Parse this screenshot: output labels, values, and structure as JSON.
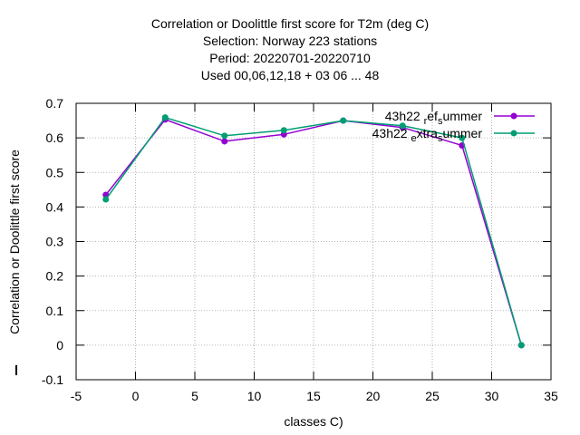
{
  "chart_data": {
    "type": "line",
    "title_lines": [
      "Correlation or Doolittle first score  for T2m (deg C)",
      "Selection: Norway     223 stations",
      "Period: 20220701-20220710",
      "Used  00,06,12,18  + 03 06 ... 48"
    ],
    "xlabel": "classes C)",
    "ylabel": "Correlation or Doolittle first score",
    "xlim": [
      -5,
      35
    ],
    "ylim": [
      -0.1,
      0.7
    ],
    "xticks": [
      "-5",
      "0",
      "5",
      "10",
      "15",
      "20",
      "25",
      "30",
      "35"
    ],
    "yticks": [
      "-0.1",
      "0",
      "0.1",
      "0.2",
      "0.3",
      "0.4",
      "0.5",
      "0.6",
      "0.7"
    ],
    "grid": true,
    "legend_position": "top-right",
    "series": [
      {
        "name": "43h22 ref summer",
        "legend_parts": [
          "43h22 ",
          "r",
          "ef",
          "s",
          "ummer"
        ],
        "color": "#9400d3",
        "x": [
          -2.5,
          2.5,
          7.5,
          12.5,
          17.5,
          22.5,
          27.5,
          32.5
        ],
        "values": [
          0.435,
          0.653,
          0.59,
          0.61,
          0.65,
          0.63,
          0.578,
          0.0
        ]
      },
      {
        "name": "43h22 extra summer",
        "legend_parts": [
          "43h22 ",
          "e",
          "xtra",
          "s",
          "ummer"
        ],
        "color": "#009e73",
        "x": [
          -2.5,
          2.5,
          7.5,
          12.5,
          17.5,
          22.5,
          27.5,
          32.5
        ],
        "values": [
          0.422,
          0.659,
          0.606,
          0.622,
          0.65,
          0.635,
          0.6,
          0.0
        ]
      }
    ]
  }
}
